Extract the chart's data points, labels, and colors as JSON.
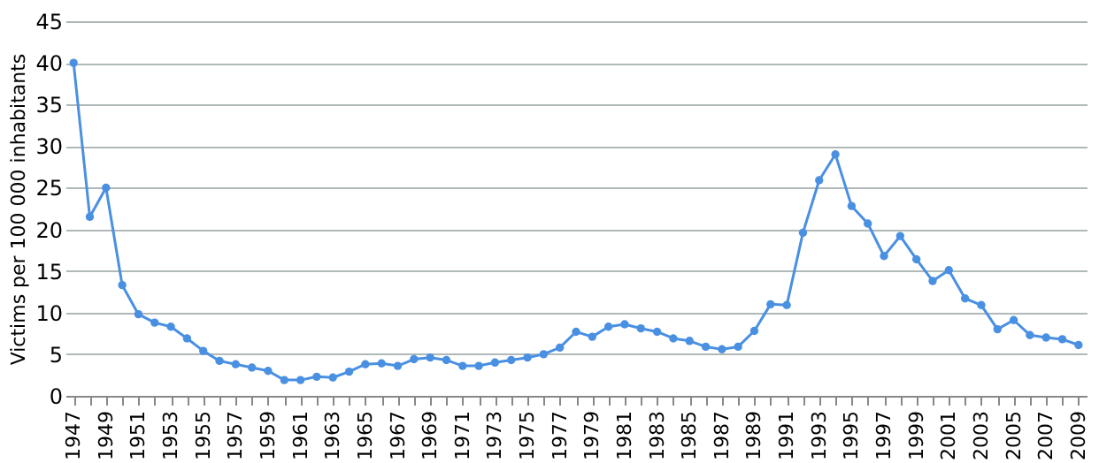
{
  "chart_data": {
    "type": "line",
    "ylabel": "Victims per 100 000 inhabitants",
    "categories": [
      "1947",
      null,
      "1949",
      null,
      "1951",
      null,
      "1953",
      null,
      "1955",
      null,
      "1957",
      null,
      "1959",
      null,
      "1961",
      null,
      "1963",
      null,
      "1965",
      null,
      "1967",
      null,
      "1969",
      null,
      "1971",
      null,
      "1973",
      null,
      "1975",
      null,
      "1977",
      null,
      "1979",
      null,
      "1981",
      null,
      "1983",
      null,
      "1985",
      null,
      "1987",
      null,
      "1989",
      null,
      "1991",
      null,
      "1993",
      null,
      "1995",
      null,
      "1997",
      null,
      "1999",
      null,
      "2001",
      null,
      "2003",
      null,
      "2005",
      null,
      "2007",
      null,
      "2009"
    ],
    "series": [
      {
        "color": "#4a90e2",
        "values": [
          40,
          21.5,
          25,
          13.3,
          9.8,
          8.8,
          8.3,
          6.9,
          5.4,
          4.2,
          3.8,
          3.4,
          3.0,
          1.9,
          1.9,
          2.3,
          2.2,
          2.9,
          3.8,
          3.9,
          3.6,
          4.4,
          4.6,
          4.3,
          3.6,
          3.6,
          4.0,
          4.3,
          4.6,
          5.0,
          5.8,
          7.7,
          7.1,
          8.3,
          8.6,
          8.1,
          7.7,
          6.9,
          6.6,
          5.9,
          5.6,
          5.9,
          7.8,
          11,
          10.9,
          19.6,
          25.9,
          29,
          22.8,
          20.7,
          16.8,
          19.2,
          16.4,
          13.8,
          15.1,
          11.7,
          10.9,
          8.0,
          9.1,
          7.3,
          7.0,
          6.8,
          6.1
        ]
      }
    ],
    "ylim": [
      0,
      45
    ],
    "yticks": [
      0,
      5,
      10,
      15,
      20,
      25,
      30,
      35,
      40,
      45
    ],
    "grid": "y",
    "marker": "circle",
    "line_style": "solid"
  }
}
